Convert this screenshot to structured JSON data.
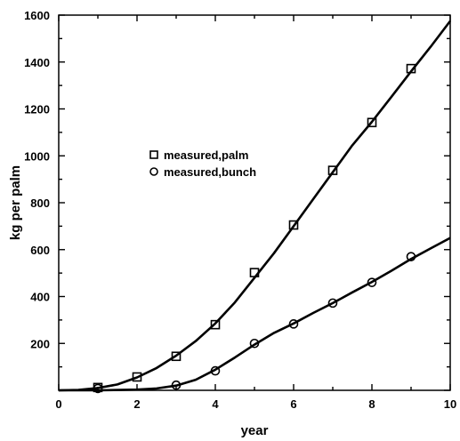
{
  "chart_data": {
    "type": "scatter",
    "title": "",
    "xlabel": "year",
    "ylabel": "kg per palm",
    "xlim": [
      0,
      10
    ],
    "ylim": [
      0,
      1600
    ],
    "x_ticks": [
      "0",
      "2",
      "4",
      "6",
      "8",
      "10"
    ],
    "y_ticks": [
      "200",
      "400",
      "600",
      "800",
      "1000",
      "1200",
      "1400",
      "1600"
    ],
    "grid": false,
    "legend_position": "center-left",
    "series": [
      {
        "name": "measured,palm",
        "marker": "square",
        "points": [
          [
            1,
            12
          ],
          [
            2,
            57
          ],
          [
            3,
            145
          ],
          [
            4,
            280
          ],
          [
            5,
            502
          ],
          [
            6,
            705
          ],
          [
            7,
            938
          ],
          [
            8,
            1142
          ],
          [
            9,
            1372
          ]
        ],
        "fit": [
          [
            0,
            0
          ],
          [
            0.5,
            2
          ],
          [
            1,
            10
          ],
          [
            1.5,
            25
          ],
          [
            2,
            55
          ],
          [
            2.5,
            95
          ],
          [
            3,
            148
          ],
          [
            3.5,
            210
          ],
          [
            4,
            285
          ],
          [
            4.5,
            375
          ],
          [
            5,
            480
          ],
          [
            5.5,
            585
          ],
          [
            6,
            700
          ],
          [
            6.5,
            815
          ],
          [
            7,
            930
          ],
          [
            7.5,
            1045
          ],
          [
            8,
            1145
          ],
          [
            8.5,
            1252
          ],
          [
            9,
            1360
          ],
          [
            9.5,
            1465
          ],
          [
            10,
            1575
          ]
        ]
      },
      {
        "name": "measured,bunch",
        "marker": "circle",
        "points": [
          [
            1,
            8
          ],
          [
            3,
            22
          ],
          [
            4,
            83
          ],
          [
            5,
            200
          ],
          [
            6,
            283
          ],
          [
            7,
            372
          ],
          [
            8,
            460
          ],
          [
            9,
            570
          ]
        ],
        "fit": [
          [
            0,
            0
          ],
          [
            1,
            0
          ],
          [
            2,
            3
          ],
          [
            2.5,
            8
          ],
          [
            3,
            20
          ],
          [
            3.5,
            45
          ],
          [
            4,
            88
          ],
          [
            4.5,
            140
          ],
          [
            5,
            195
          ],
          [
            5.5,
            245
          ],
          [
            6,
            285
          ],
          [
            6.5,
            330
          ],
          [
            7,
            372
          ],
          [
            7.5,
            418
          ],
          [
            8,
            462
          ],
          [
            8.5,
            510
          ],
          [
            9,
            560
          ],
          [
            9.5,
            605
          ],
          [
            10,
            650
          ]
        ]
      }
    ]
  },
  "colors": {
    "ink": "#000000",
    "background": "#ffffff"
  }
}
